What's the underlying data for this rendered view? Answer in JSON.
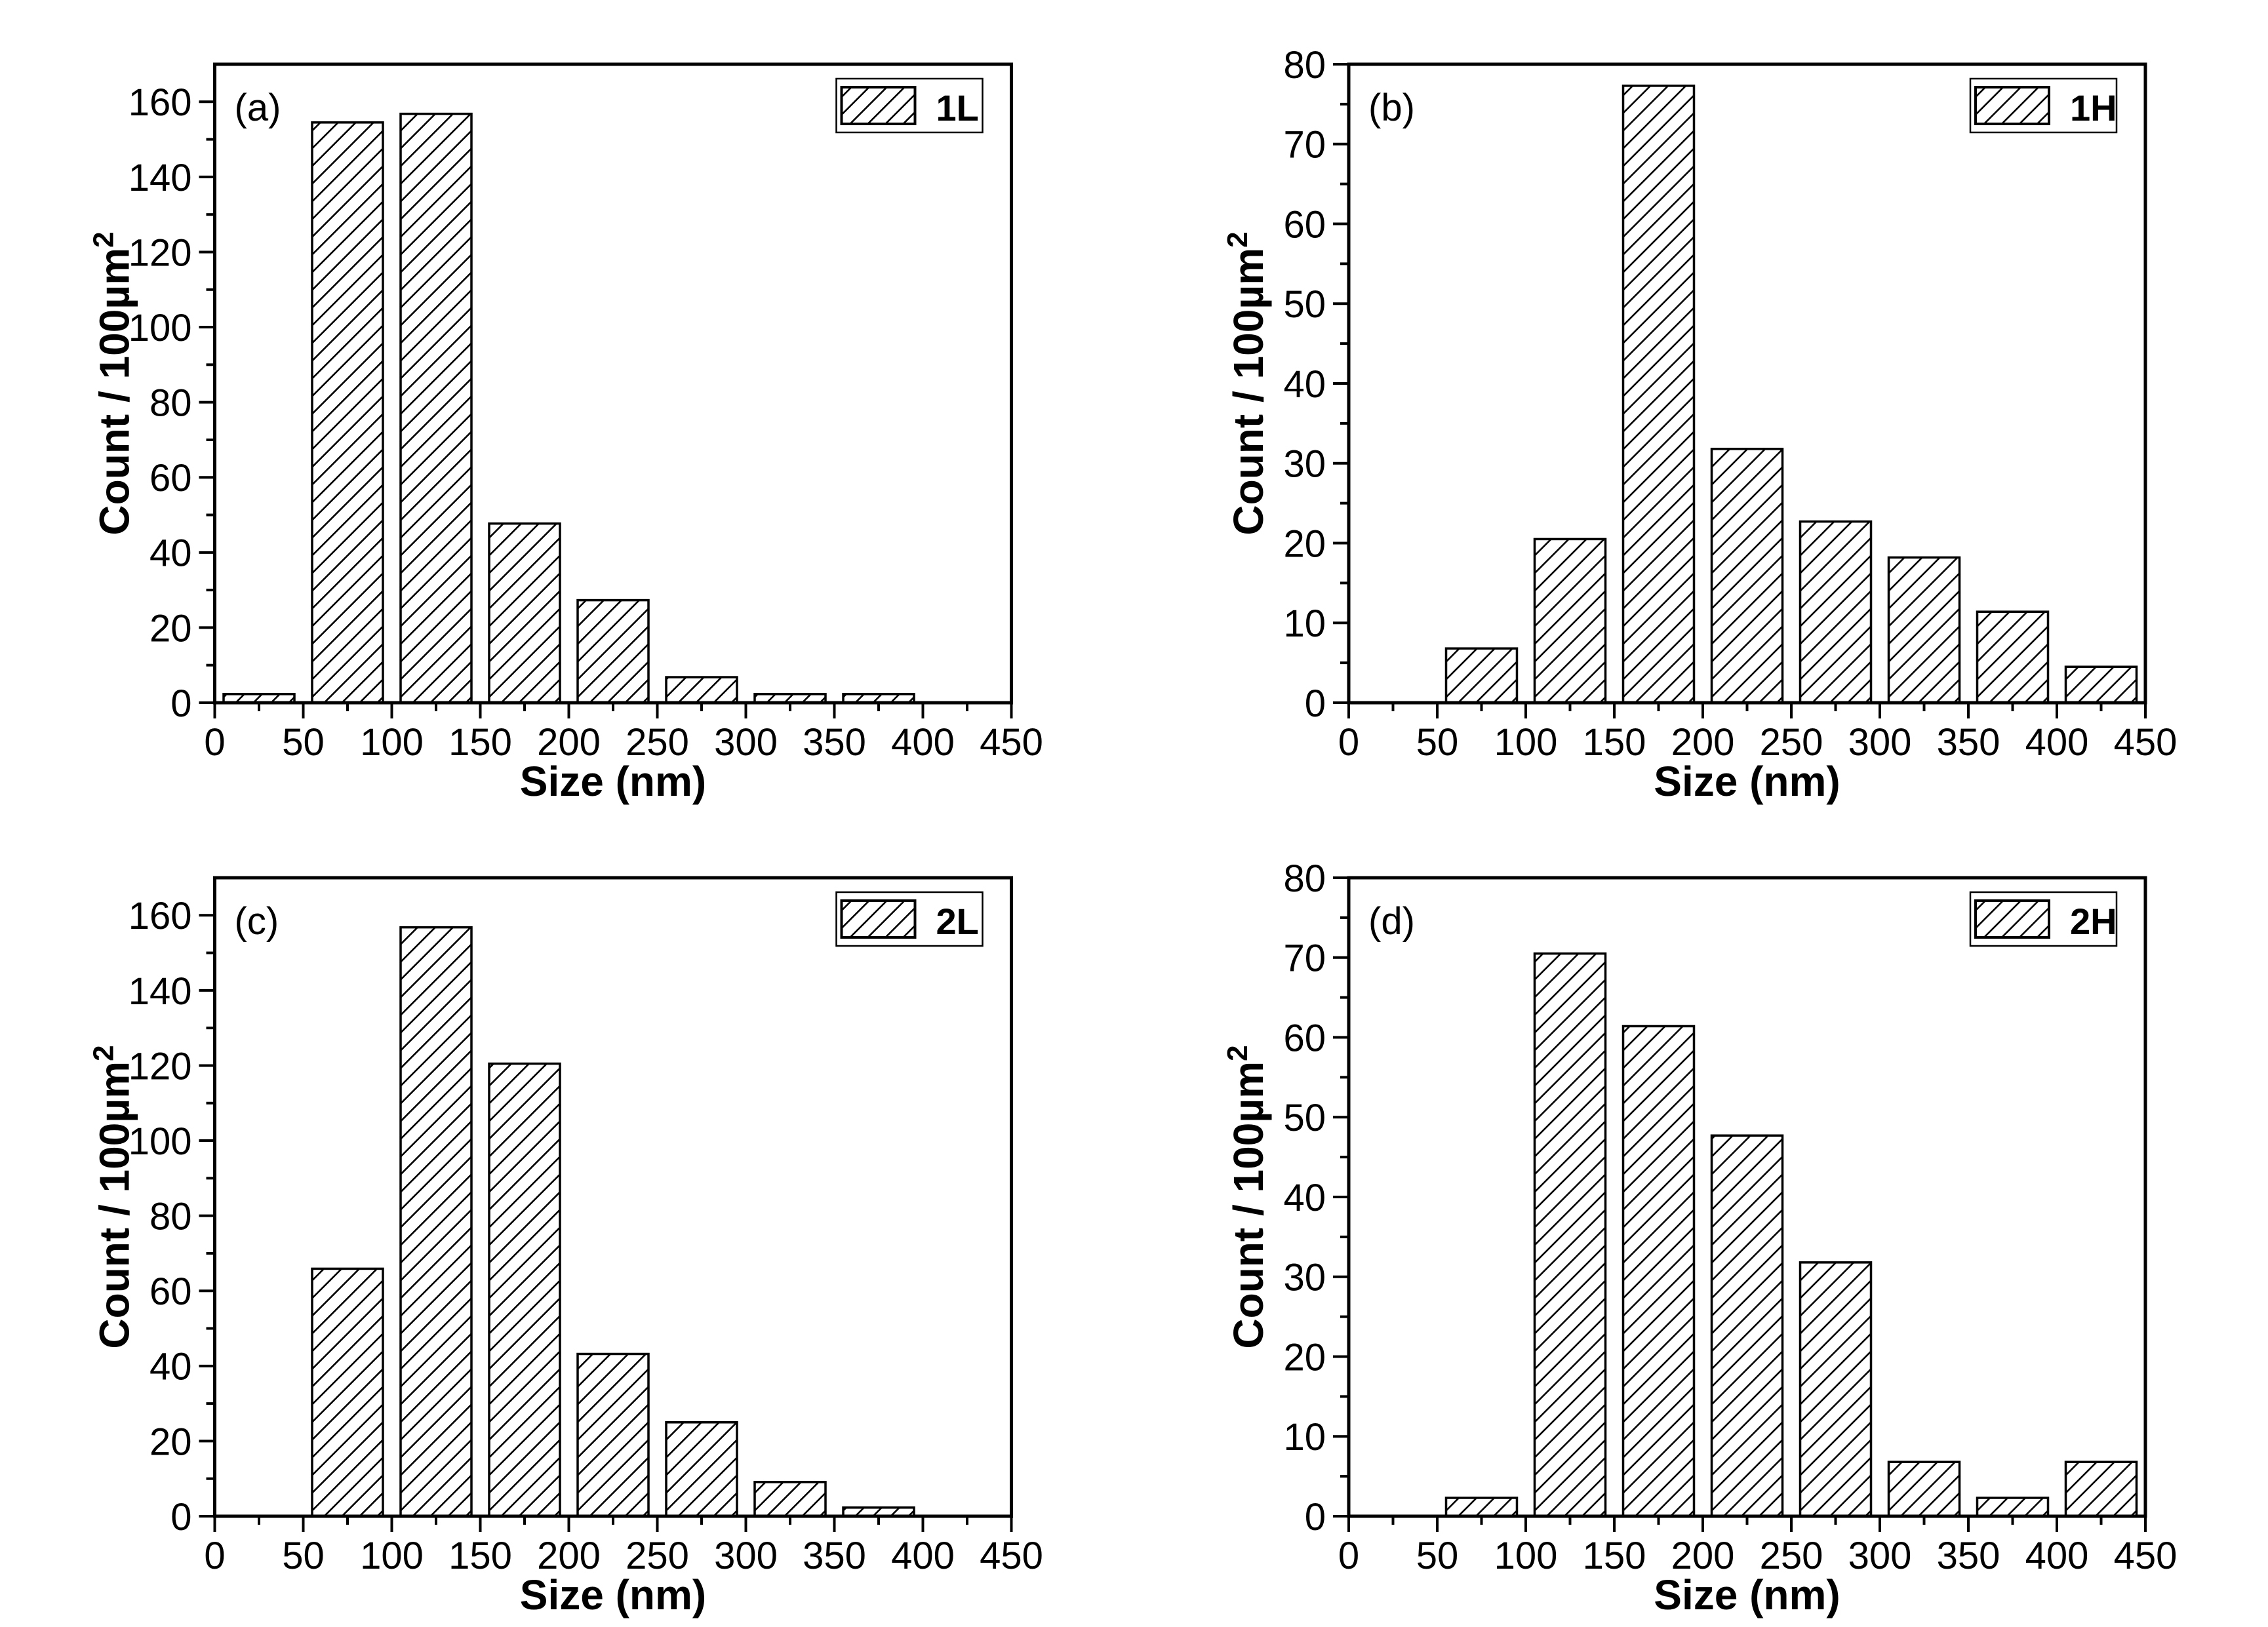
{
  "figure": {
    "background": "#ffffff",
    "ink_color": "#000000",
    "bar_fill": "#ffffff",
    "bar_border": "#000000",
    "hatch_style": "diagonal-forward-slash",
    "xlabel": "Size (nm)",
    "ylabel": "Count / 100µm²",
    "ylabel_main": "Count / 100µm",
    "ylabel_sup": "2"
  },
  "chart_data": [
    {
      "type": "bar",
      "panel_label": "(a)",
      "legend": "1L",
      "legend_position": "top-right",
      "title": "",
      "xlabel": "Size (nm)",
      "ylabel": "Count / 100µm²",
      "bins": [
        "0-50",
        "50-100",
        "100-150",
        "150-200",
        "200-250",
        "250-300",
        "300-350",
        "350-400",
        "400-450"
      ],
      "x": [
        25,
        75,
        125,
        175,
        225,
        275,
        325,
        375,
        425
      ],
      "values": [
        2.3,
        154.5,
        156.8,
        47.7,
        27.3,
        6.8,
        2.3,
        2.3,
        0
      ],
      "bar_width_nm": 40,
      "xlim": [
        0,
        450
      ],
      "ylim": [
        0,
        170
      ],
      "x_major_step": 50,
      "x_minor_step": 25,
      "y_major_step": 20,
      "y_minor_step": 10,
      "grid": false
    },
    {
      "type": "bar",
      "panel_label": "(b)",
      "legend": "1H",
      "legend_position": "top-right",
      "title": "",
      "xlabel": "Size (nm)",
      "ylabel": "Count / 100µm²",
      "bins": [
        "0-50",
        "50-100",
        "100-150",
        "150-200",
        "200-250",
        "250-300",
        "300-350",
        "350-400",
        "400-450"
      ],
      "x": [
        25,
        75,
        125,
        175,
        225,
        275,
        325,
        375,
        425
      ],
      "values": [
        0,
        6.8,
        20.5,
        77.3,
        31.8,
        22.7,
        18.2,
        11.4,
        4.5
      ],
      "bar_width_nm": 40,
      "xlim": [
        0,
        450
      ],
      "ylim": [
        0,
        80
      ],
      "x_major_step": 50,
      "x_minor_step": 25,
      "y_major_step": 10,
      "y_minor_step": 5,
      "grid": false
    },
    {
      "type": "bar",
      "panel_label": "(c)",
      "legend": "2L",
      "legend_position": "top-right",
      "title": "",
      "xlabel": "Size (nm)",
      "ylabel": "Count / 100µm²",
      "bins": [
        "0-50",
        "50-100",
        "100-150",
        "150-200",
        "200-250",
        "250-300",
        "300-350",
        "350-400",
        "400-450"
      ],
      "x": [
        25,
        75,
        125,
        175,
        225,
        275,
        325,
        375,
        425
      ],
      "values": [
        0,
        65.9,
        156.8,
        120.5,
        43.2,
        25.0,
        9.1,
        2.3,
        0
      ],
      "bar_width_nm": 40,
      "xlim": [
        0,
        450
      ],
      "ylim": [
        0,
        170
      ],
      "x_major_step": 50,
      "x_minor_step": 25,
      "y_major_step": 20,
      "y_minor_step": 10,
      "grid": false
    },
    {
      "type": "bar",
      "panel_label": "(d)",
      "legend": "2H",
      "legend_position": "top-right",
      "title": "",
      "xlabel": "Size (nm)",
      "ylabel": "Count / 100µm²",
      "bins": [
        "0-50",
        "50-100",
        "100-150",
        "150-200",
        "200-250",
        "250-300",
        "300-350",
        "350-400",
        "400-450"
      ],
      "x": [
        25,
        75,
        125,
        175,
        225,
        275,
        325,
        375,
        425
      ],
      "values": [
        0,
        2.3,
        70.5,
        61.4,
        47.7,
        31.8,
        6.8,
        2.3,
        6.8
      ],
      "bar_width_nm": 40,
      "xlim": [
        0,
        450
      ],
      "ylim": [
        0,
        80
      ],
      "x_major_step": 50,
      "x_minor_step": 25,
      "y_major_step": 10,
      "y_minor_step": 5,
      "grid": false
    }
  ]
}
